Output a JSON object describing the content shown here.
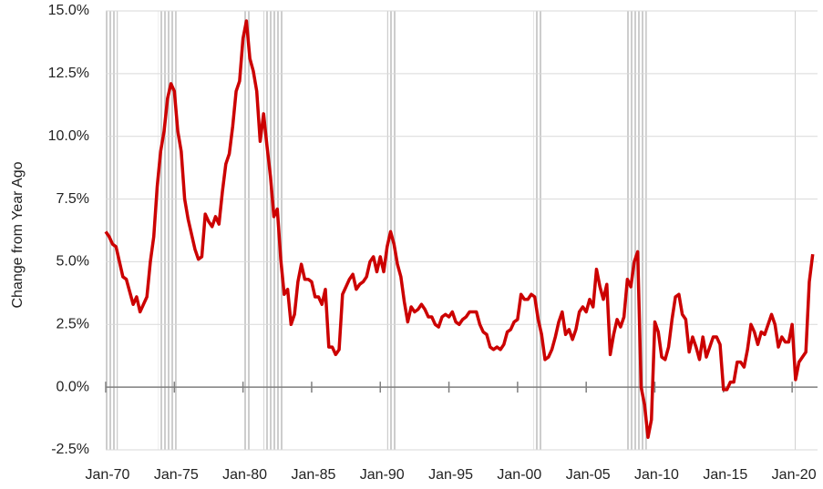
{
  "chart_data": {
    "type": "line",
    "y_label": "Change from Year Ago",
    "xlim": [
      1970,
      2021.85
    ],
    "ylim": [
      -2.5,
      15
    ],
    "xticks": [
      {
        "value": 1970,
        "label": "Jan-70"
      },
      {
        "value": 1975,
        "label": "Jan-75"
      },
      {
        "value": 1980,
        "label": "Jan-80"
      },
      {
        "value": 1985,
        "label": "Jan-85"
      },
      {
        "value": 1990,
        "label": "Jan-90"
      },
      {
        "value": 1995,
        "label": "Jan-95"
      },
      {
        "value": 2000,
        "label": "Jan-00"
      },
      {
        "value": 2005,
        "label": "Jan-05"
      },
      {
        "value": 2010,
        "label": "Jan-10"
      },
      {
        "value": 2015,
        "label": "Jan-15"
      },
      {
        "value": 2020,
        "label": "Jan-20"
      }
    ],
    "yticks": [
      {
        "value": -2.5,
        "label": "-2.5%"
      },
      {
        "value": 0,
        "label": "0.0%"
      },
      {
        "value": 2.5,
        "label": "2.5%"
      },
      {
        "value": 5,
        "label": "5.0%"
      },
      {
        "value": 7.5,
        "label": "7.5%"
      },
      {
        "value": 10,
        "label": "10.0%"
      },
      {
        "value": 12.5,
        "label": "12.5%"
      },
      {
        "value": 15,
        "label": "15.0%"
      }
    ],
    "grid": true,
    "recessions": [
      [
        1969.92,
        1970.88
      ],
      [
        1973.83,
        1975.17
      ],
      [
        1980.0,
        1980.5
      ],
      [
        1981.5,
        1982.88
      ],
      [
        1990.5,
        1991.17
      ],
      [
        2001.17,
        2001.83
      ],
      [
        2007.92,
        2009.42
      ],
      [
        2020.08,
        2020.25
      ]
    ],
    "recession_color": "#c8c8c8",
    "x": [
      1970,
      1970.25,
      1970.5,
      1970.75,
      1971,
      1971.25,
      1971.5,
      1971.75,
      1972,
      1972.25,
      1972.5,
      1972.75,
      1973,
      1973.25,
      1973.5,
      1973.75,
      1974,
      1974.25,
      1974.5,
      1974.75,
      1975,
      1975.25,
      1975.5,
      1975.75,
      1976,
      1976.25,
      1976.5,
      1976.75,
      1977,
      1977.25,
      1977.5,
      1977.75,
      1978,
      1978.25,
      1978.5,
      1978.75,
      1979,
      1979.25,
      1979.5,
      1979.75,
      1980,
      1980.25,
      1980.5,
      1980.75,
      1981,
      1981.25,
      1981.5,
      1981.75,
      1982,
      1982.25,
      1982.5,
      1982.75,
      1983,
      1983.25,
      1983.5,
      1983.75,
      1984,
      1984.25,
      1984.5,
      1984.75,
      1985,
      1985.25,
      1985.5,
      1985.75,
      1986,
      1986.25,
      1986.5,
      1986.75,
      1987,
      1987.25,
      1987.5,
      1987.75,
      1988,
      1988.25,
      1988.5,
      1988.75,
      1989,
      1989.25,
      1989.5,
      1989.75,
      1990,
      1990.25,
      1990.5,
      1990.75,
      1991,
      1991.25,
      1991.5,
      1991.75,
      1992,
      1992.25,
      1992.5,
      1992.75,
      1993,
      1993.25,
      1993.5,
      1993.75,
      1994,
      1994.25,
      1994.5,
      1994.75,
      1995,
      1995.25,
      1995.5,
      1995.75,
      1996,
      1996.25,
      1996.5,
      1996.75,
      1997,
      1997.25,
      1997.5,
      1997.75,
      1998,
      1998.25,
      1998.5,
      1998.75,
      1999,
      1999.25,
      1999.5,
      1999.75,
      2000,
      2000.25,
      2000.5,
      2000.75,
      2001,
      2001.25,
      2001.5,
      2001.75,
      2002,
      2002.25,
      2002.5,
      2002.75,
      2003,
      2003.25,
      2003.5,
      2003.75,
      2004,
      2004.25,
      2004.5,
      2004.75,
      2005,
      2005.25,
      2005.5,
      2005.75,
      2006,
      2006.25,
      2006.5,
      2006.75,
      2007,
      2007.25,
      2007.5,
      2007.75,
      2008,
      2008.25,
      2008.5,
      2008.75,
      2009,
      2009.25,
      2009.5,
      2009.75,
      2010,
      2010.25,
      2010.5,
      2010.75,
      2011,
      2011.25,
      2011.5,
      2011.75,
      2012,
      2012.25,
      2012.5,
      2012.75,
      2013,
      2013.25,
      2013.5,
      2013.75,
      2014,
      2014.25,
      2014.5,
      2014.75,
      2015,
      2015.25,
      2015.5,
      2015.75,
      2016,
      2016.25,
      2016.5,
      2016.75,
      2017,
      2017.25,
      2017.5,
      2017.75,
      2018,
      2018.25,
      2018.5,
      2018.75,
      2019,
      2019.25,
      2019.5,
      2019.75,
      2020,
      2020.25,
      2020.5,
      2020.75,
      2021,
      2021.25,
      2021.5
    ],
    "series": [
      {
        "color": "#cc0000",
        "values": [
          6.2,
          6.0,
          5.7,
          5.6,
          5.0,
          4.4,
          4.3,
          3.8,
          3.3,
          3.6,
          3.0,
          3.3,
          3.6,
          5.0,
          6.0,
          8.0,
          9.4,
          10.2,
          11.5,
          12.1,
          11.8,
          10.2,
          9.4,
          7.5,
          6.7,
          6.1,
          5.5,
          5.1,
          5.2,
          6.9,
          6.6,
          6.4,
          6.8,
          6.5,
          7.8,
          8.9,
          9.3,
          10.4,
          11.8,
          12.2,
          13.9,
          14.6,
          13.1,
          12.6,
          11.8,
          9.8,
          10.9,
          9.6,
          8.4,
          6.8,
          7.1,
          5.1,
          3.7,
          3.9,
          2.5,
          2.9,
          4.2,
          4.9,
          4.3,
          4.3,
          4.2,
          3.6,
          3.6,
          3.3,
          3.9,
          1.6,
          1.6,
          1.3,
          1.5,
          3.7,
          4.0,
          4.3,
          4.5,
          3.9,
          4.1,
          4.2,
          4.4,
          5.0,
          5.2,
          4.6,
          5.2,
          4.6,
          5.6,
          6.2,
          5.7,
          4.9,
          4.4,
          3.4,
          2.6,
          3.2,
          3.0,
          3.1,
          3.3,
          3.1,
          2.8,
          2.8,
          2.5,
          2.4,
          2.8,
          2.9,
          2.8,
          3.0,
          2.6,
          2.5,
          2.7,
          2.8,
          3.0,
          3.0,
          3.0,
          2.5,
          2.2,
          2.1,
          1.6,
          1.5,
          1.6,
          1.5,
          1.7,
          2.2,
          2.3,
          2.6,
          2.7,
          3.7,
          3.5,
          3.5,
          3.7,
          3.6,
          2.7,
          2.1,
          1.1,
          1.2,
          1.5,
          2.0,
          2.6,
          3.0,
          2.1,
          2.3,
          1.9,
          2.3,
          3.0,
          3.2,
          3.0,
          3.5,
          3.2,
          4.7,
          4.0,
          3.5,
          4.1,
          1.3,
          2.1,
          2.7,
          2.4,
          2.8,
          4.3,
          4.0,
          5.0,
          5.4,
          0.0,
          -0.7,
          -2.0,
          -1.3,
          2.6,
          2.2,
          1.2,
          1.1,
          1.6,
          2.7,
          3.6,
          3.7,
          2.9,
          2.7,
          1.4,
          2.0,
          1.6,
          1.1,
          2.0,
          1.2,
          1.6,
          2.0,
          2.0,
          1.7,
          -0.1,
          -0.1,
          0.2,
          0.2,
          1.0,
          1.0,
          0.8,
          1.5,
          2.5,
          2.2,
          1.7,
          2.2,
          2.1,
          2.5,
          2.9,
          2.5,
          1.6,
          2.0,
          1.8,
          1.8,
          2.5,
          0.3,
          1.0,
          1.2,
          1.4,
          4.2,
          5.3
        ]
      }
    ]
  }
}
